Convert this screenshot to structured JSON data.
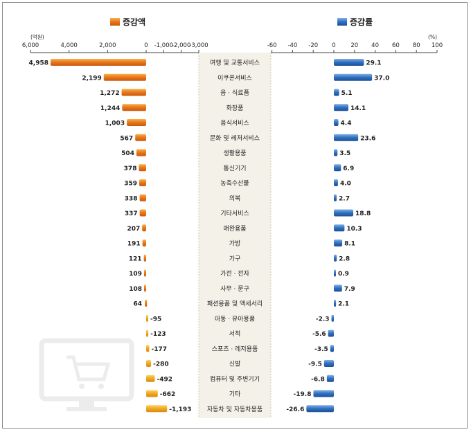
{
  "chart_data": {
    "type": "bar",
    "legend_left": "증감액",
    "legend_right": "증감률",
    "left_unit": "(억원)",
    "right_unit": "(%)",
    "left_axis_ticks": [
      "6,000",
      "4,000",
      "2,000",
      "0",
      "-1,000",
      "-2,000",
      "-3,000"
    ],
    "right_axis_ticks": [
      "-60",
      "-40",
      "-20",
      "0",
      "20",
      "40",
      "60",
      "80",
      "100"
    ],
    "colors": {
      "amount_positive": "#e8751a",
      "amount_negative": "#f0a81e",
      "rate_positive": "#2f6fc0",
      "rate_negative": "#2a5fa8",
      "label_band": "#f4f1e8"
    },
    "categories": [
      "여행 및 교통서비스",
      "이쿠폰서비스",
      "음 · 식료품",
      "화장품",
      "음식서비스",
      "문화 및 레저서비스",
      "생활용품",
      "통신기기",
      "농축수산물",
      "의복",
      "기타서비스",
      "애완용품",
      "가방",
      "가구",
      "가전 · 전자",
      "사무 · 문구",
      "패션용품 및 액세서리",
      "아동 · 유아용품",
      "서적",
      "스포츠 · 레저용품",
      "신발",
      "컴퓨터 및 주변기기",
      "기타",
      "자동차 및 자동차용품"
    ],
    "series": [
      {
        "name": "증감액",
        "values": [
          4958,
          2199,
          1272,
          1244,
          1003,
          567,
          504,
          378,
          359,
          338,
          337,
          207,
          191,
          121,
          109,
          108,
          64,
          -95,
          -123,
          -177,
          -280,
          -492,
          -662,
          -1193
        ],
        "labels": [
          "4,958",
          "2,199",
          "1,272",
          "1,244",
          "1,003",
          "567",
          "504",
          "378",
          "359",
          "338",
          "337",
          "207",
          "191",
          "121",
          "109",
          "108",
          "64",
          "-95",
          "-123",
          "-177",
          "-280",
          "-492",
          "-662",
          "-1,193"
        ]
      },
      {
        "name": "증감률",
        "values": [
          29.1,
          37.0,
          5.1,
          14.1,
          4.4,
          23.6,
          3.5,
          6.9,
          4.0,
          2.7,
          18.8,
          10.3,
          8.1,
          2.8,
          0.9,
          7.9,
          2.1,
          -2.3,
          -5.6,
          -3.5,
          -9.5,
          -6.8,
          -19.8,
          -26.6
        ],
        "labels": [
          "29.1",
          "37.0",
          "5.1",
          "14.1",
          "4.4",
          "23.6",
          "3.5",
          "6.9",
          "4.0",
          "2.7",
          "18.8",
          "10.3",
          "8.1",
          "2.8",
          "0.9",
          "7.9",
          "2.1",
          "-2.3",
          "-5.6",
          "-3.5",
          "-9.5",
          "-6.8",
          "-19.8",
          "-26.6"
        ]
      }
    ]
  }
}
